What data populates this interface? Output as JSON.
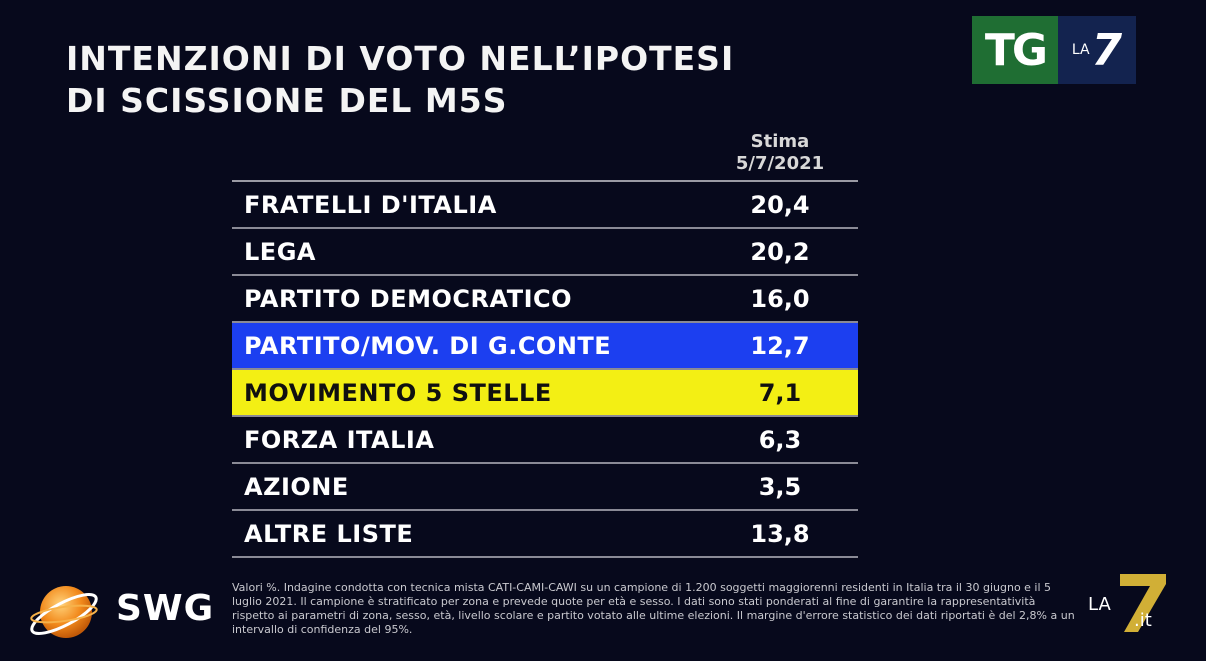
{
  "title_lines": [
    "INTENZIONI DI VOTO NELL’IPOTESI",
    "DI SCISSIONE DEL M5S"
  ],
  "logo_tg": {
    "tg": "TG",
    "la": "LA",
    "seven": "7"
  },
  "chart_data": {
    "type": "table",
    "title": "INTENZIONI DI VOTO NELL’IPOTESI DI SCISSIONE DEL M5S",
    "column_header": [
      "Stima",
      "5/7/2021"
    ],
    "rows": [
      {
        "label": "FRATELLI D'ITALIA",
        "value": "20,4",
        "highlight": ""
      },
      {
        "label": "LEGA",
        "value": "20,2",
        "highlight": ""
      },
      {
        "label": "PARTITO DEMOCRATICO",
        "value": "16,0",
        "highlight": ""
      },
      {
        "label": "PARTITO/MOV. DI G.CONTE",
        "value": "12,7",
        "highlight": "#1c3ff0"
      },
      {
        "label": "MOVIMENTO 5 STELLE",
        "value": "7,1",
        "highlight": "#f3ef14"
      },
      {
        "label": "FORZA ITALIA",
        "value": "6,3",
        "highlight": ""
      },
      {
        "label": "AZIONE",
        "value": "3,5",
        "highlight": ""
      },
      {
        "label": "ALTRE LISTE",
        "value": "13,8",
        "highlight": ""
      }
    ]
  },
  "swg_logo": "SWG",
  "footnote": "Valori %. Indagine condotta con tecnica mista CATI-CAMI-CAWI su un campione di 1.200 soggetti maggiorenni residenti in Italia tra il 30 giugno e il 5 luglio 2021. Il campione è stratificato per zona e prevede quote per età e sesso. I dati sono stati ponderati al fine di garantire la rappresentatività rispetto ai parametri di zona, sesso, età, livello scolare e partito votato alle ultime elezioni. Il margine d'errore statistico dei dati riportati è del 2,8% a un intervallo di confidenza del 95%.",
  "corner_logo": {
    "la": "LA",
    "seven": "7",
    "it": ".it"
  }
}
